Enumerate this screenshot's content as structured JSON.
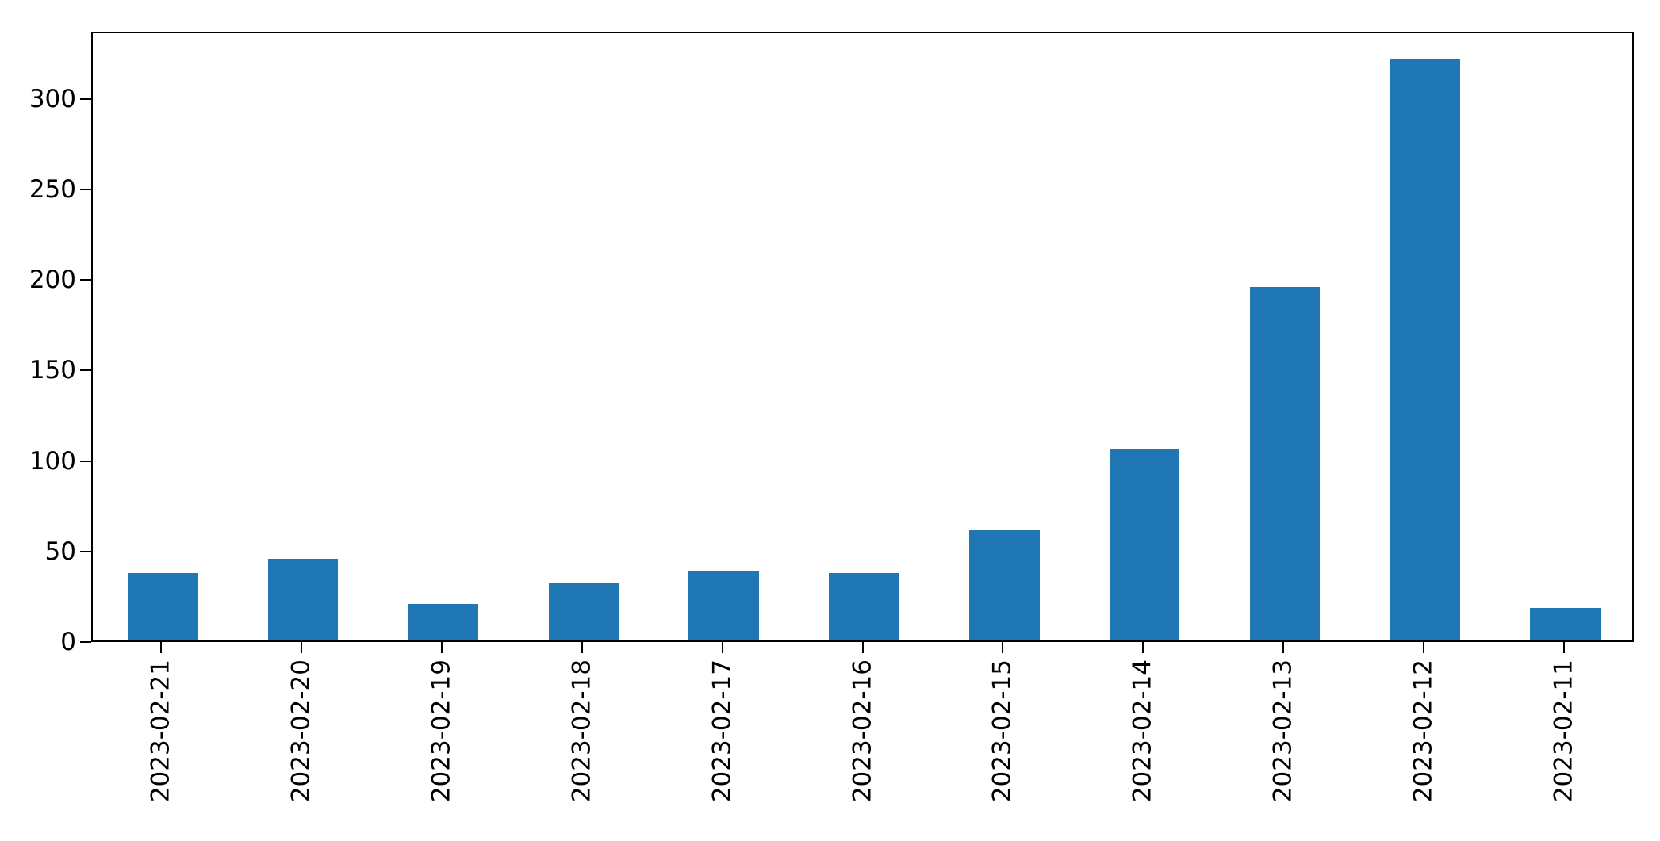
{
  "chart_data": {
    "type": "bar",
    "title": "",
    "xlabel": "",
    "ylabel": "",
    "categories": [
      "2023-02-21",
      "2023-02-20",
      "2023-02-19",
      "2023-02-18",
      "2023-02-17",
      "2023-02-16",
      "2023-02-15",
      "2023-02-14",
      "2023-02-13",
      "2023-02-12",
      "2023-02-11"
    ],
    "values": [
      37,
      45,
      20,
      32,
      38,
      37,
      61,
      106,
      195,
      321,
      18
    ],
    "bar_color": "#1f77b4",
    "background_color": "#ffffff",
    "axis_color": "#000000",
    "ylim": [
      0,
      337
    ],
    "yticks": [
      0,
      50,
      100,
      150,
      200,
      250,
      300
    ],
    "x_tick_rotation": 90,
    "grid": false,
    "legend_position": "none"
  }
}
